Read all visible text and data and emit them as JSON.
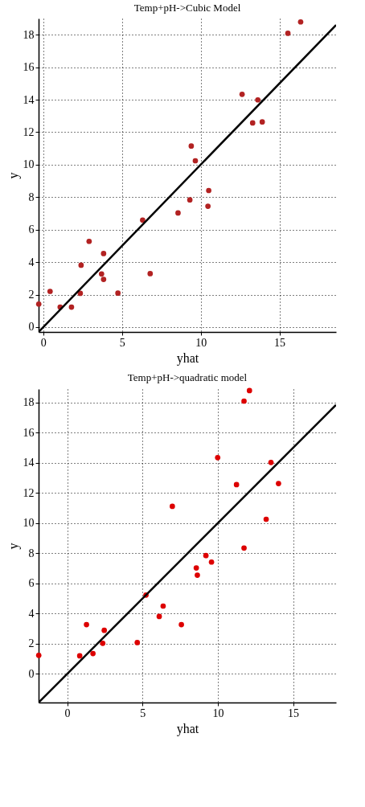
{
  "chart_data": [
    {
      "type": "scatter",
      "title": "Temp+pH->Cubic Model",
      "xlabel": "yhat",
      "ylabel": "y",
      "xlim": [
        -0.3,
        18.6
      ],
      "ylim": [
        -0.3,
        19
      ],
      "xticks": [
        0,
        5,
        10,
        15
      ],
      "yticks": [
        0,
        2,
        4,
        6,
        8,
        10,
        12,
        14,
        16,
        18
      ],
      "grid": true,
      "series": [
        {
          "marker": "circle",
          "color": "#b22222",
          "x": [
            16.35,
            15.54,
            12.63,
            13.63,
            13.3,
            13.91,
            9.4,
            9.66,
            10.51,
            9.31,
            10.46,
            8.56,
            6.31,
            2.91,
            3.83,
            2.4,
            3.7,
            3.83,
            6.79,
            0.43,
            2.35,
            4.74,
            -0.29,
            1.07,
            1.79
          ],
          "values": [
            18.79,
            18.09,
            14.33,
            13.99,
            12.57,
            12.63,
            11.15,
            10.24,
            8.41,
            7.83,
            7.44,
            7.03,
            6.59,
            5.28,
            4.53,
            3.81,
            3.27,
            2.94,
            3.29,
            2.2,
            2.08,
            2.09,
            1.42,
            1.23,
            1.23
          ]
        },
        {
          "type": "line",
          "color": "#000000",
          "line_style": "solid",
          "x": [
            -0.3,
            18.6
          ],
          "values": [
            -0.3,
            18.6
          ]
        }
      ]
    },
    {
      "type": "scatter",
      "title": "Temp+pH->quadratic model",
      "xlabel": "yhat",
      "ylabel": "y",
      "xlim": [
        -1.9,
        17.85
      ],
      "ylim": [
        -1.9,
        18.9
      ],
      "xticks": [
        0,
        5,
        10,
        15
      ],
      "yticks": [
        0,
        2,
        4,
        6,
        8,
        10,
        12,
        14,
        16,
        18
      ],
      "grid": true,
      "series": [
        {
          "marker": "circle",
          "color": "#dd0000",
          "x": [
            12.1,
            11.74,
            9.99,
            13.53,
            11.24,
            14.03,
            6.98,
            13.21,
            11.74,
            9.21,
            9.58,
            8.57,
            8.64,
            5.23,
            6.37,
            6.11,
            7.58,
            1.28,
            2.46,
            2.36,
            4.52,
            4.65,
            1.71,
            0.83,
            -1.89
          ],
          "values": [
            18.8,
            18.1,
            14.35,
            14.03,
            12.56,
            12.63,
            11.12,
            10.26,
            8.35,
            7.85,
            7.42,
            7.03,
            6.55,
            5.23,
            4.5,
            3.81,
            3.27,
            3.27,
            2.89,
            2.03,
            null,
            2.08,
            1.35,
            1.2,
            1.23
          ]
        },
        {
          "type": "line",
          "color": "#000000",
          "line_style": "solid",
          "x": [
            -1.9,
            17.85
          ],
          "values": [
            -1.9,
            17.85
          ]
        }
      ]
    }
  ]
}
